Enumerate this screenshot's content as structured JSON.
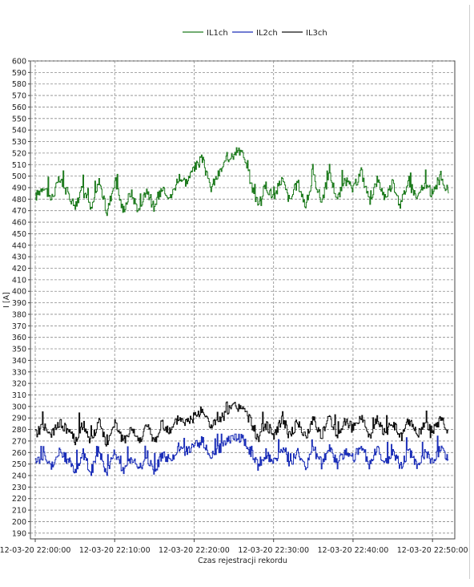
{
  "chart_data": {
    "type": "line",
    "title": "",
    "ylabel": "I [A]",
    "xlabel": "Czas rejestracji rekordu",
    "ylim": [
      185,
      600
    ],
    "y_ticks": [
      190,
      200,
      210,
      220,
      230,
      240,
      250,
      260,
      270,
      280,
      290,
      300,
      310,
      320,
      330,
      340,
      350,
      360,
      370,
      380,
      390,
      400,
      410,
      420,
      430,
      440,
      450,
      460,
      470,
      480,
      490,
      500,
      510,
      520,
      530,
      540,
      550,
      560,
      570,
      580,
      590,
      600
    ],
    "x_range": [
      "12-03-20 22:00:00",
      "12-03-20 22:52:00"
    ],
    "x_ticks": [
      "12-03-20 22:00:00",
      "12-03-20 22:10:00",
      "12-03-20 22:20:00",
      "12-03-20 22:30:00",
      "12-03-20 22:40:00",
      "12-03-20 22:50:00"
    ],
    "grid": true,
    "legend_position": "top-center",
    "series": [
      {
        "name": "IL1ch",
        "color": "#1e7b1e",
        "x_minutes": [
          0,
          1,
          2,
          3,
          4,
          5,
          6,
          7,
          8,
          9,
          10,
          11,
          12,
          13,
          14,
          15,
          16,
          17,
          18,
          19,
          20,
          21,
          22,
          23,
          24,
          25,
          26,
          27,
          28,
          29,
          30,
          31,
          32,
          33,
          34,
          35,
          36,
          37,
          38,
          39,
          40,
          41,
          42,
          43,
          44,
          45,
          46,
          47,
          48,
          49,
          50,
          51,
          52
        ],
        "values": [
          482,
          492,
          480,
          497,
          486,
          474,
          491,
          470,
          496,
          468,
          497,
          470,
          486,
          470,
          489,
          471,
          492,
          481,
          499,
          495,
          507,
          515,
          489,
          501,
          513,
          523,
          520,
          496,
          475,
          492,
          481,
          498,
          478,
          495,
          474,
          500,
          478,
          502,
          480,
          496,
          488,
          505,
          477,
          497,
          482,
          494,
          476,
          498,
          480,
          493,
          484,
          500,
          485
        ],
        "min": 465,
        "max": 528
      },
      {
        "name": "IL2ch",
        "color": "#1c2fb8",
        "x_minutes": [
          0,
          1,
          2,
          3,
          4,
          5,
          6,
          7,
          8,
          9,
          10,
          11,
          12,
          13,
          14,
          15,
          16,
          17,
          18,
          19,
          20,
          21,
          22,
          23,
          24,
          25,
          26,
          27,
          28,
          29,
          30,
          31,
          32,
          33,
          34,
          35,
          36,
          37,
          38,
          39,
          40,
          41,
          42,
          43,
          44,
          45,
          46,
          47,
          48,
          49,
          50,
          51,
          52
        ],
        "values": [
          251,
          258,
          249,
          260,
          254,
          245,
          259,
          243,
          262,
          242,
          261,
          244,
          256,
          245,
          257,
          244,
          259,
          252,
          264,
          261,
          266,
          270,
          258,
          262,
          268,
          274,
          272,
          262,
          248,
          259,
          251,
          263,
          249,
          261,
          247,
          264,
          249,
          265,
          250,
          262,
          255,
          266,
          249,
          262,
          252,
          259,
          248,
          262,
          250,
          259,
          253,
          263,
          254
        ],
        "min": 240,
        "max": 276
      },
      {
        "name": "IL3ch",
        "color": "#111111",
        "x_minutes": [
          0,
          1,
          2,
          3,
          4,
          5,
          6,
          7,
          8,
          9,
          10,
          11,
          12,
          13,
          14,
          15,
          16,
          17,
          18,
          19,
          20,
          21,
          22,
          23,
          24,
          25,
          26,
          27,
          28,
          29,
          30,
          31,
          32,
          33,
          34,
          35,
          36,
          37,
          38,
          39,
          40,
          41,
          42,
          43,
          44,
          45,
          46,
          47,
          48,
          49,
          50,
          51,
          52
        ],
        "values": [
          276,
          284,
          274,
          286,
          280,
          270,
          285,
          268,
          288,
          267,
          287,
          269,
          281,
          270,
          283,
          269,
          285,
          277,
          290,
          286,
          292,
          297,
          283,
          287,
          294,
          300,
          298,
          288,
          272,
          284,
          276,
          289,
          274,
          287,
          272,
          290,
          274,
          291,
          275,
          288,
          280,
          292,
          274,
          288,
          277,
          285,
          273,
          288,
          275,
          284,
          278,
          289,
          279
        ],
        "min": 265,
        "max": 304
      }
    ]
  }
}
